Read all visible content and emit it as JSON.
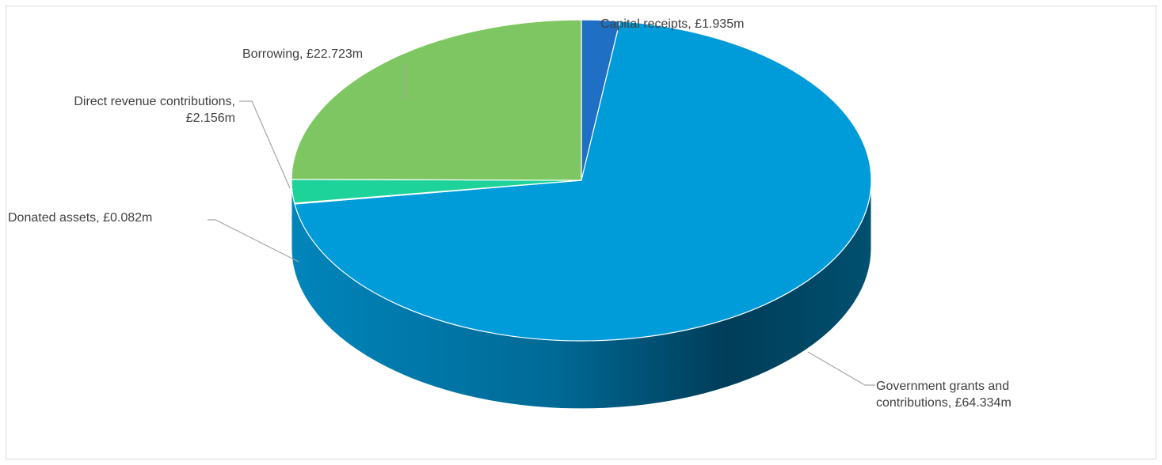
{
  "chart_data": {
    "type": "pie",
    "title": "",
    "style": "3d",
    "legend": "none",
    "units": "£m",
    "slices": [
      {
        "name": "Capital receipts",
        "value": 1.935,
        "label_lines": [
          "Capital receipts, £1.935m"
        ],
        "color": "#1f6fc5"
      },
      {
        "name": "Government grants and contributions",
        "value": 64.334,
        "label_lines": [
          "Government grants and",
          "contributions, £64.334m"
        ],
        "color": "#009bd9"
      },
      {
        "name": "Donated assets",
        "value": 0.082,
        "label_lines": [
          "Donated assets, £0.082m"
        ],
        "color": "#1aa0bf"
      },
      {
        "name": "Direct revenue contributions",
        "value": 2.156,
        "label_lines": [
          "Direct revenue contributions,",
          "£2.156m"
        ],
        "color": "#1ed39a"
      },
      {
        "name": "Borrowing",
        "value": 22.723,
        "label_lines": [
          "Borrowing, £22.723m"
        ],
        "color": "#7dc661"
      }
    ]
  }
}
